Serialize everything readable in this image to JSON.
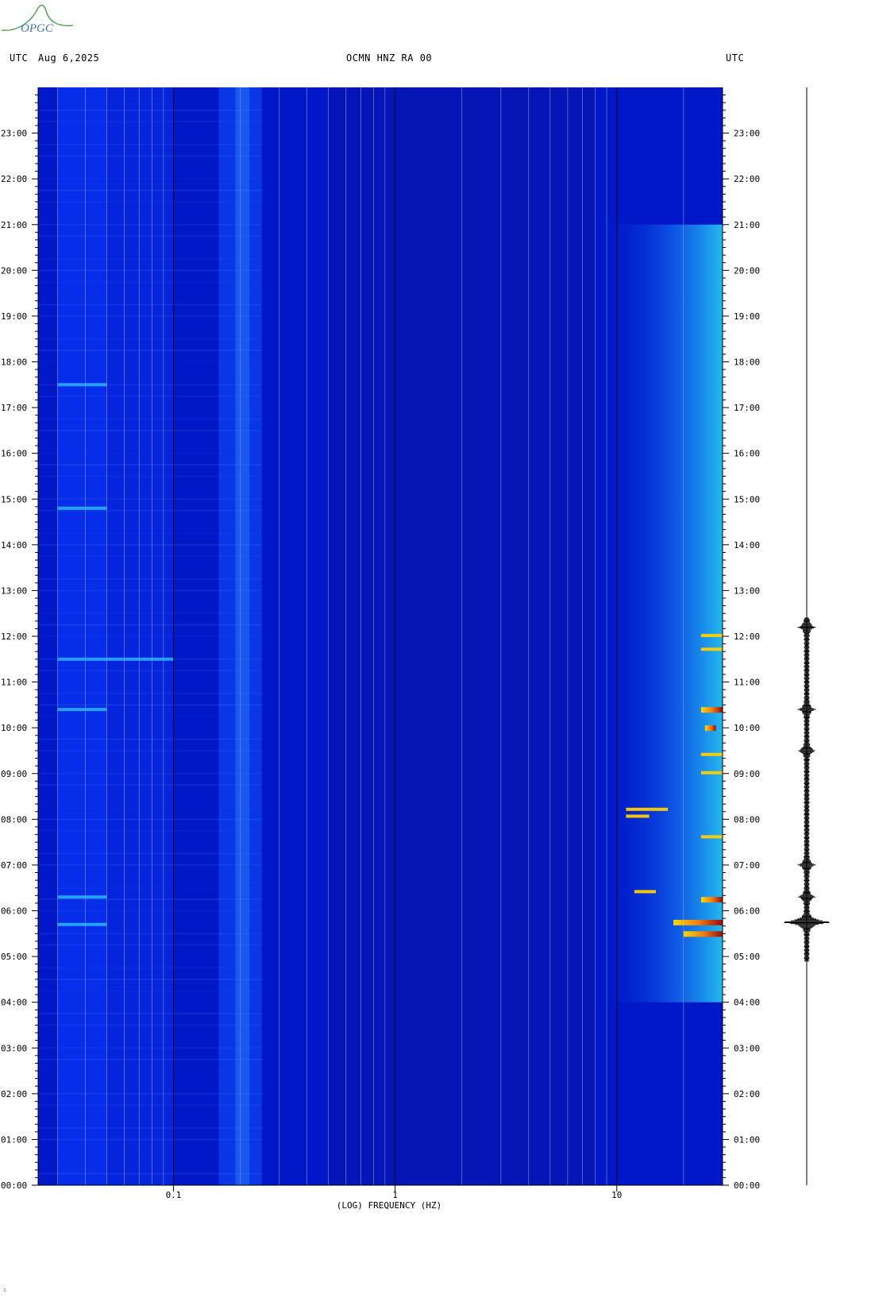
{
  "header": {
    "left_tz": "UTC",
    "date": "Aug 6,2025",
    "station": "OCMN HNZ RA 00",
    "right_tz": "UTC"
  },
  "logo": {
    "text": "OPGC",
    "name": "opgc-logo"
  },
  "footer_mark": "∴",
  "colors": {
    "background": "#0018c8",
    "gridline": "#8a8ec8",
    "majorline": "#000000",
    "event": "#a00000"
  },
  "chart_data": {
    "type": "heatmap",
    "title": "OCMN HNZ RA 00",
    "xlabel": "(LOG) FREQUENCY (HZ)",
    "x_scale": "log",
    "xlim": [
      0.0245,
      30
    ],
    "x_tick_labels": [
      "0.1",
      "1",
      "10"
    ],
    "x_ticks": [
      0.1,
      1,
      10
    ],
    "ylim_hours": [
      0,
      24
    ],
    "y_tick_labels": [
      "00:00",
      "01:00",
      "02:00",
      "03:00",
      "04:00",
      "05:00",
      "06:00",
      "07:00",
      "08:00",
      "09:00",
      "10:00",
      "11:00",
      "12:00",
      "13:00",
      "14:00",
      "15:00",
      "16:00",
      "17:00",
      "18:00",
      "19:00",
      "20:00",
      "21:00",
      "22:00",
      "23:00"
    ],
    "bright_bands": [
      {
        "hour": 10.4,
        "fmin": 0.03,
        "fmax": 0.05
      },
      {
        "hour": 11.5,
        "fmin": 0.03,
        "fmax": 0.1
      },
      {
        "hour": 17.5,
        "fmin": 0.03,
        "fmax": 0.05
      },
      {
        "hour": 6.3,
        "fmin": 0.03,
        "fmax": 0.05
      },
      {
        "hour": 5.7,
        "fmin": 0.03,
        "fmax": 0.05
      },
      {
        "hour": 14.8,
        "fmin": 0.03,
        "fmax": 0.05
      }
    ],
    "events": [
      {
        "hour": 5.5,
        "fmin": 20,
        "fmax": 30,
        "level": "high"
      },
      {
        "hour": 5.75,
        "fmin": 18,
        "fmax": 30,
        "level": "high"
      },
      {
        "hour": 6.25,
        "fmin": 24,
        "fmax": 30,
        "level": "high"
      },
      {
        "hour": 6.4,
        "fmin": 12,
        "fmax": 15,
        "level": "mid"
      },
      {
        "hour": 8.2,
        "fmin": 11,
        "fmax": 17,
        "level": "mid"
      },
      {
        "hour": 8.05,
        "fmin": 11,
        "fmax": 14,
        "level": "mid"
      },
      {
        "hour": 10.4,
        "fmin": 24,
        "fmax": 30,
        "level": "high"
      },
      {
        "hour": 10.0,
        "fmin": 25,
        "fmax": 28,
        "level": "high"
      },
      {
        "hour": 11.7,
        "fmin": 24,
        "fmax": 30,
        "level": "mid"
      },
      {
        "hour": 12.0,
        "fmin": 24,
        "fmax": 30,
        "level": "mid"
      },
      {
        "hour": 7.6,
        "fmin": 24,
        "fmax": 30,
        "level": "mid"
      },
      {
        "hour": 9.0,
        "fmin": 24,
        "fmax": 30,
        "level": "mid"
      },
      {
        "hour": 9.4,
        "fmin": 24,
        "fmax": 30,
        "level": "mid"
      }
    ],
    "seismogram_events_hours": [
      5.75,
      10.4,
      6.3,
      12.2,
      7.0,
      9.5
    ]
  }
}
